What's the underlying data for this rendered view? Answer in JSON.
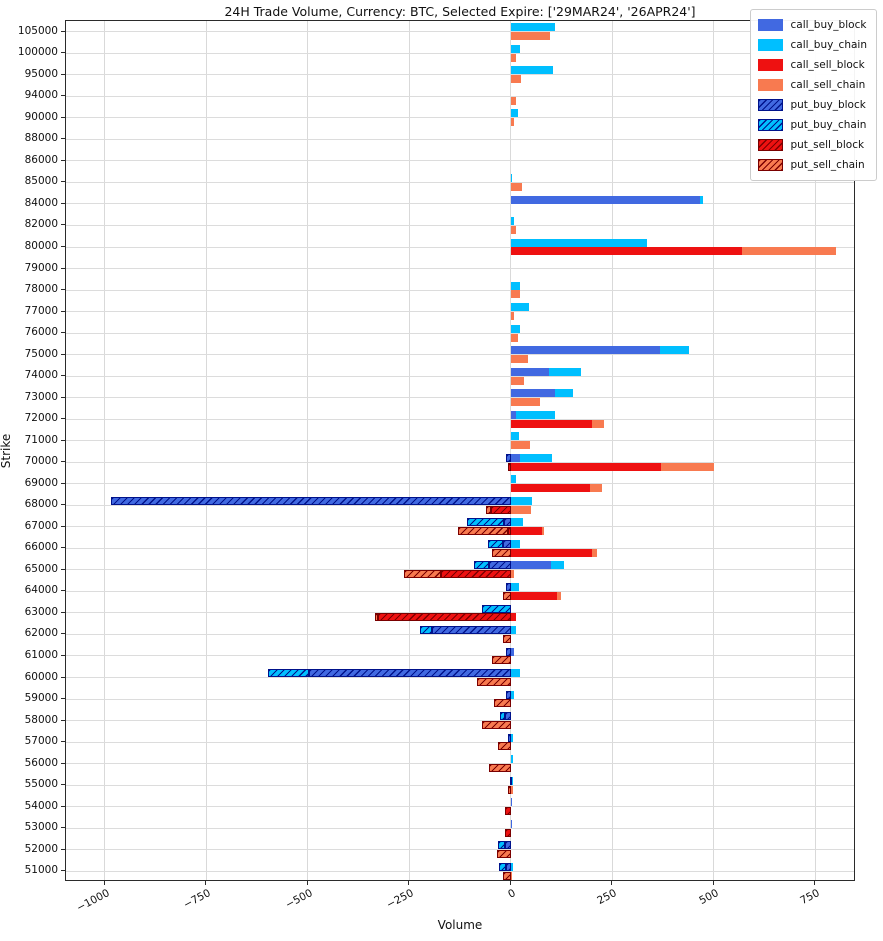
{
  "title": "24H Trade Volume, Currency: BTC, Selected Expire: ['29MAR24', '26APR24']",
  "xlabel": "Volume",
  "ylabel": "Strike",
  "chart_data": {
    "type": "bar",
    "orientation": "horizontal",
    "stacked": true,
    "grid": true,
    "legend_position": "upper right",
    "xlim": [
      -1095,
      850
    ],
    "xticks": [
      -1000,
      -750,
      -500,
      -250,
      0,
      250,
      500,
      750
    ],
    "categories": [
      105000,
      100000,
      95000,
      94000,
      90000,
      88000,
      86000,
      85000,
      84000,
      82000,
      80000,
      79000,
      78000,
      77000,
      76000,
      75000,
      74000,
      73000,
      72000,
      71000,
      70000,
      69000,
      68000,
      67000,
      66000,
      65000,
      64000,
      63000,
      62000,
      61000,
      60000,
      59000,
      58000,
      57000,
      56000,
      55000,
      54000,
      53000,
      52000,
      51000
    ],
    "series": [
      {
        "name": "call_buy_block",
        "group": "buy",
        "color": "#4169e1",
        "hatch": false,
        "hatch_color": "#00128b",
        "values": [
          0,
          0,
          0,
          0,
          0,
          0,
          0,
          0,
          465,
          0,
          0,
          0,
          0,
          0,
          0,
          368,
          95,
          110,
          13,
          0,
          23,
          0,
          0,
          0,
          0,
          98,
          0,
          0,
          0,
          8,
          0,
          0,
          0,
          0,
          0,
          0,
          3,
          3,
          0,
          0
        ]
      },
      {
        "name": "call_buy_chain",
        "group": "buy",
        "color": "#00bfff",
        "hatch": false,
        "hatch_color": "#00128b",
        "values": [
          110,
          22,
          105,
          0,
          18,
          0,
          0,
          3,
          8,
          9,
          335,
          0,
          22,
          45,
          22,
          72,
          78,
          43,
          95,
          21,
          78,
          12,
          52,
          30,
          23,
          33,
          20,
          0,
          12,
          0,
          23,
          8,
          0,
          5,
          5,
          5,
          0,
          0,
          0,
          6
        ]
      },
      {
        "name": "call_sell_block",
        "group": "sell",
        "color": "#ee1111",
        "hatch": false,
        "hatch_color": "#7a0000",
        "values": [
          0,
          0,
          0,
          0,
          0,
          0,
          0,
          0,
          0,
          0,
          570,
          0,
          0,
          0,
          0,
          0,
          0,
          0,
          200,
          0,
          370,
          195,
          0,
          76,
          200,
          0,
          115,
          12,
          0,
          0,
          0,
          0,
          0,
          0,
          0,
          0,
          0,
          0,
          0,
          0
        ]
      },
      {
        "name": "call_sell_chain",
        "group": "sell",
        "color": "#f87a50",
        "hatch": false,
        "hatch_color": "#7a0000",
        "values": [
          97,
          13,
          26,
          12,
          8,
          0,
          0,
          27,
          0,
          12,
          230,
          0,
          22,
          9,
          18,
          43,
          33,
          73,
          29,
          47,
          130,
          30,
          49,
          6,
          12,
          8,
          8,
          0,
          0,
          0,
          0,
          0,
          0,
          0,
          0,
          5,
          0,
          0,
          0,
          4
        ]
      },
      {
        "name": "put_buy_block",
        "group": "buy",
        "color": "#4169e1",
        "hatch": true,
        "hatch_color": "#00128b",
        "values": [
          0,
          0,
          0,
          0,
          0,
          0,
          0,
          0,
          0,
          0,
          0,
          0,
          0,
          0,
          0,
          0,
          0,
          0,
          0,
          0,
          -12,
          0,
          -985,
          -17,
          -19,
          -53,
          -12,
          0,
          -193,
          -11,
          -496,
          -12,
          -14,
          -6,
          0,
          -3,
          0,
          0,
          -15,
          -12
        ]
      },
      {
        "name": "put_buy_chain",
        "group": "buy",
        "color": "#00bfff",
        "hatch": true,
        "hatch_color": "#00128b",
        "values": [
          0,
          0,
          0,
          0,
          0,
          0,
          0,
          0,
          0,
          0,
          0,
          0,
          0,
          0,
          0,
          0,
          0,
          0,
          0,
          0,
          0,
          0,
          0,
          -90,
          -37,
          -38,
          0,
          -70,
          -30,
          0,
          -102,
          0,
          -12,
          0,
          0,
          0,
          0,
          0,
          -16,
          -16
        ]
      },
      {
        "name": "put_sell_block",
        "group": "sell",
        "color": "#ee1111",
        "hatch": true,
        "hatch_color": "#7a0000",
        "values": [
          0,
          0,
          0,
          0,
          0,
          0,
          0,
          0,
          0,
          0,
          0,
          0,
          0,
          0,
          0,
          0,
          0,
          0,
          0,
          0,
          -7,
          0,
          -49,
          -7,
          0,
          -172,
          0,
          -327,
          0,
          0,
          0,
          0,
          0,
          0,
          0,
          0,
          -15,
          -15,
          0,
          0
        ]
      },
      {
        "name": "put_sell_chain",
        "group": "sell",
        "color": "#f87a50",
        "hatch": true,
        "hatch_color": "#7a0000",
        "values": [
          0,
          0,
          0,
          0,
          0,
          0,
          0,
          0,
          0,
          0,
          0,
          0,
          0,
          0,
          0,
          0,
          0,
          0,
          0,
          0,
          0,
          0,
          -12,
          -124,
          -45,
          -92,
          -18,
          -8,
          -18,
          -45,
          -82,
          -41,
          -70,
          -31,
          -53,
          -8,
          0,
          0,
          -33,
          -18
        ]
      }
    ]
  }
}
